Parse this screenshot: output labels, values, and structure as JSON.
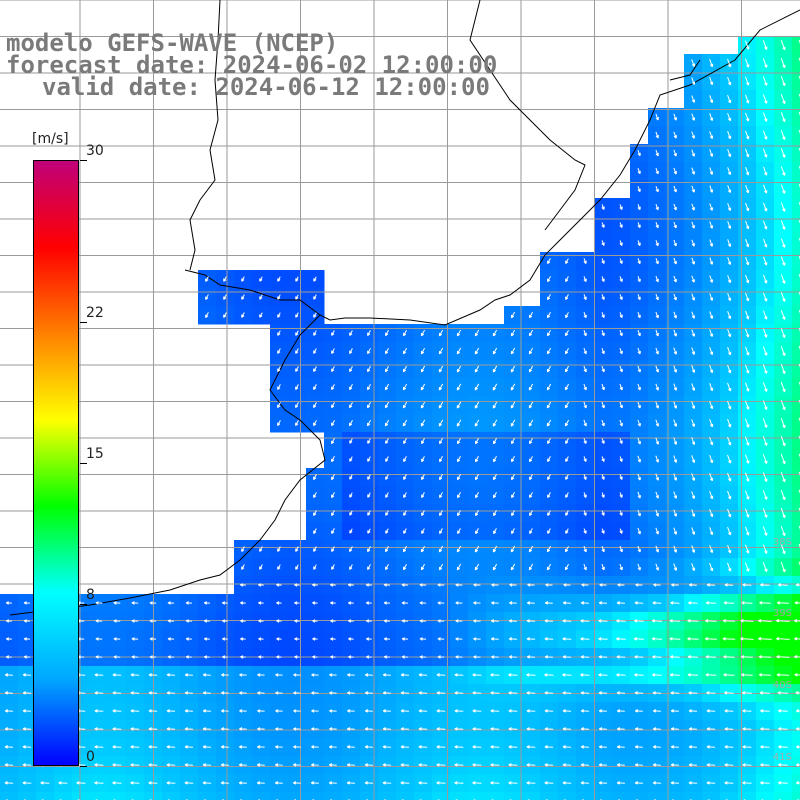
{
  "header": {
    "model_line": "modelo GEFS-WAVE (NCEP)",
    "forecast_line": "forecast date: 2024-06-02 12:00:00",
    "valid_line": "valid date: 2024-06-12 12:00:00"
  },
  "colorbar": {
    "unit": "[m/s]",
    "ticks": [
      {
        "label": "30",
        "value": 30
      },
      {
        "label": "22",
        "value": 22
      },
      {
        "label": "15",
        "value": 15
      },
      {
        "label": "8",
        "value": 8
      },
      {
        "label": "0",
        "value": 0
      }
    ],
    "colors": [
      "#0000ff",
      "#00a8ff",
      "#00ffff",
      "#00ff00",
      "#ffff00",
      "#ff8000",
      "#ff0000",
      "#c0007a"
    ]
  },
  "lat_labels": [
    "38S",
    "39S",
    "40S",
    "41S"
  ],
  "colors": {
    "land": "#ffffff",
    "coast": "#000000",
    "grid": "#9a9a9a",
    "arrows": "#ffffff"
  }
}
